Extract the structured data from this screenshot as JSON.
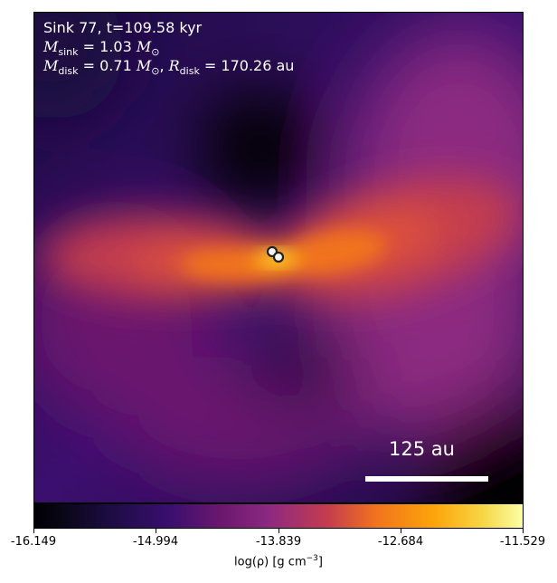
{
  "annotation": {
    "line1": "Sink 77, t=109.58 kyr",
    "msink_symbol": "M",
    "msink_sub": "sink",
    "msink_value": "= 1.03",
    "mdisk_symbol": "M",
    "mdisk_sub": "disk",
    "mdisk_value": "= 0.71",
    "rdisk_symbol": "R",
    "rdisk_sub": "disk",
    "rdisk_value": "= 170.26 au",
    "solar_symbol": "⊙"
  },
  "scale_bar": {
    "label": "125 au"
  },
  "colorbar": {
    "ticks": [
      "-16.149",
      "-14.994",
      "-13.839",
      "-12.684",
      "-11.529"
    ],
    "label_prefix": "log(ρ) [g cm",
    "label_exp": "−3",
    "label_suffix": "]",
    "colormap": "inferno"
  },
  "sinks": [
    {
      "name": "sink-a"
    },
    {
      "name": "sink-b"
    }
  ],
  "colors": {
    "dark": "#0a0717",
    "purple": "#3b0f6f",
    "magenta": "#8c2981",
    "red": "#c43c4e",
    "orange": "#f1731d",
    "yellow": "#fca50a",
    "bright": "#fcffa4"
  }
}
